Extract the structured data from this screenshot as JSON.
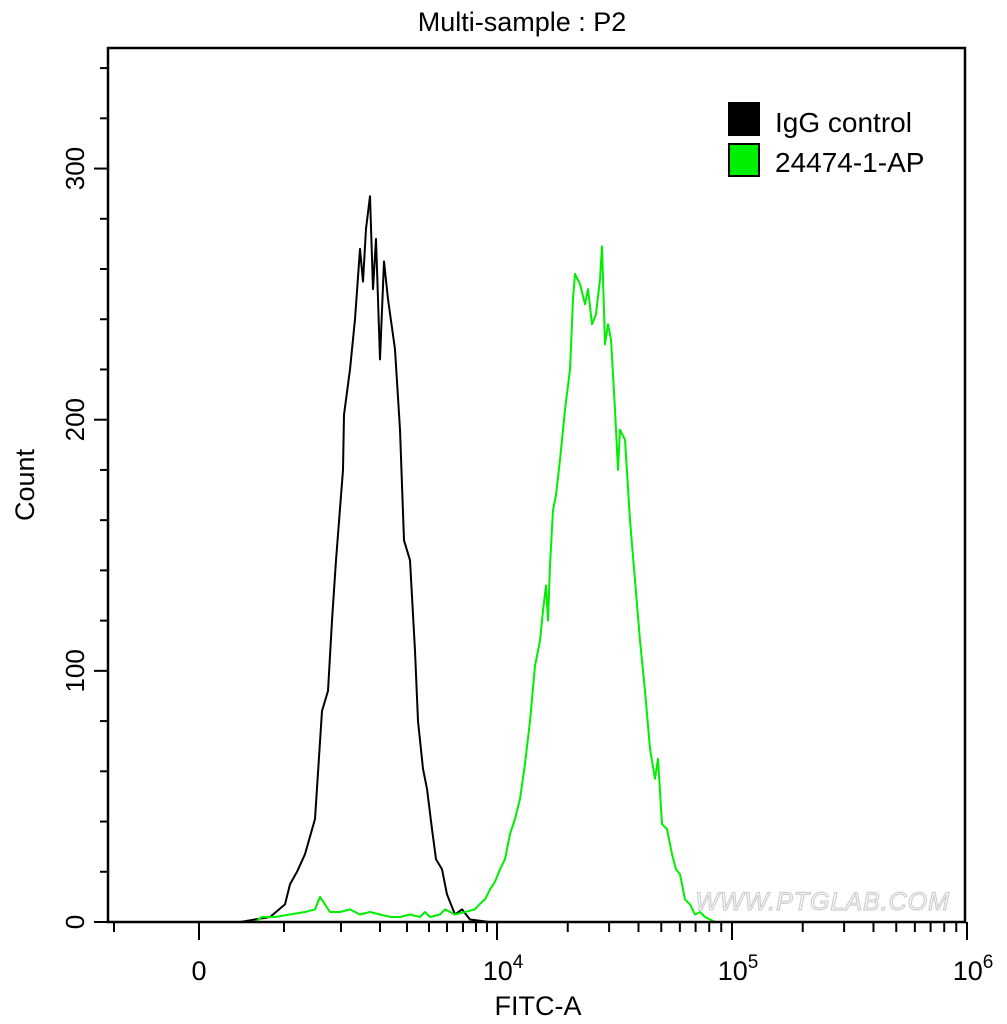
{
  "chart_data": {
    "type": "line",
    "title": "Multi-sample : P2",
    "xlabel": "FITC-A",
    "ylabel": "Count",
    "x_scale": "biexponential",
    "xlim": [
      -1000,
      1000000
    ],
    "ylim": [
      0,
      348
    ],
    "grid": false,
    "legend_placement": "top-right",
    "x_ticks": [
      {
        "value": 0,
        "base": "0",
        "exp": ""
      },
      {
        "value": 10000,
        "base": "10",
        "exp": "4"
      },
      {
        "value": 100000,
        "base": "10",
        "exp": "5"
      },
      {
        "value": 1000000,
        "base": "10",
        "exp": "6"
      }
    ],
    "y_ticks": [
      {
        "value": 0,
        "label": "0"
      },
      {
        "value": 100,
        "label": "100"
      },
      {
        "value": 200,
        "label": "200"
      },
      {
        "value": 300,
        "label": "300"
      }
    ],
    "series": [
      {
        "name": "IgG control",
        "color": "#000000",
        "x": [
          0,
          482,
          835,
          1018,
          1105,
          1228,
          1368,
          1544,
          1667,
          1772,
          1842,
          1912,
          2051,
          2077,
          2231,
          2359,
          2487,
          2564,
          2641,
          2744,
          2821,
          2897,
          3000,
          3148,
          3296,
          3556,
          3741,
          3889,
          4136,
          4364,
          4500,
          4727,
          4909,
          5167,
          5389,
          5722,
          6000,
          6500,
          6938,
          7538,
          9273
        ],
        "y": [
          0,
          0,
          2,
          7,
          15,
          20,
          27,
          41,
          84,
          92,
          120,
          144,
          180,
          202,
          220,
          240,
          268,
          255,
          276,
          289,
          252,
          272,
          224,
          263,
          248,
          228,
          196,
          152,
          144,
          108,
          80,
          61,
          53,
          37,
          25,
          21,
          11,
          3,
          5,
          1,
          0
        ]
      },
      {
        "name": "24474-1-AP",
        "color": "#00ee00",
        "x": [
          659,
          741,
          894,
          1105,
          1368,
          1544,
          1632,
          1719,
          1807,
          1982,
          2231,
          2487,
          2744,
          3000,
          3407,
          3741,
          4136,
          4591,
          4818,
          5056,
          5611,
          5889,
          6500,
          7154,
          7923,
          8308,
          8818,
          9300,
          9800,
          10300,
          10820,
          11360,
          11930,
          12530,
          13160,
          13820,
          14510,
          15240,
          15690,
          16160,
          16480,
          16810,
          17310,
          17830,
          18540,
          19470,
          20450,
          21060,
          21470,
          22550,
          23690,
          24390,
          25370,
          26380,
          27440,
          27980,
          28820,
          29680,
          30560,
          31780,
          32730,
          33370,
          35050,
          36810,
          38670,
          40600,
          42650,
          44780,
          47040,
          48430,
          50370,
          52900,
          55560,
          57770,
          60080,
          63100,
          66260,
          69600,
          73090,
          76740,
          84700
        ],
        "y": [
          0,
          2,
          2,
          3,
          4,
          5,
          10,
          7,
          4,
          4,
          5,
          3,
          4,
          3,
          2,
          2,
          3,
          2,
          4,
          2,
          3,
          5,
          3,
          4,
          5,
          7,
          9,
          13,
          16,
          21,
          25,
          35,
          41,
          49,
          63,
          80,
          102,
          112,
          124,
          134,
          120,
          142,
          164,
          170,
          184,
          204,
          220,
          248,
          258,
          254,
          246,
          252,
          238,
          242,
          256,
          269,
          230,
          238,
          232,
          204,
          180,
          196,
          192,
          160,
          136,
          112,
          92,
          69,
          57,
          65,
          39,
          37,
          27,
          21,
          19,
          9,
          7,
          3,
          4,
          2,
          0
        ]
      }
    ]
  },
  "watermark": "WWW.PTGLAB.COM"
}
